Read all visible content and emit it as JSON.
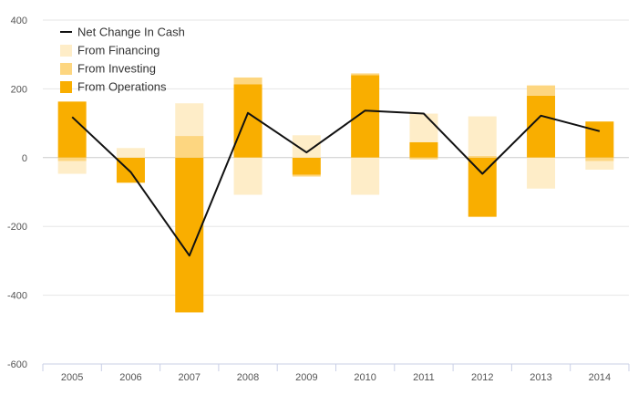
{
  "chart_data": {
    "type": "bar",
    "categories": [
      "2005",
      "2006",
      "2007",
      "2008",
      "2009",
      "2010",
      "2011",
      "2012",
      "2013",
      "2014"
    ],
    "ylim": [
      -600,
      400
    ],
    "yticks": [
      400,
      200,
      0,
      -200,
      -400,
      -600
    ],
    "grid": true,
    "legend_position": "top-left",
    "series": [
      {
        "name": "From Operations",
        "kind": "bar",
        "color": "#F9AE00",
        "values": [
          163,
          -73,
          -450,
          213,
          -50,
          240,
          45,
          -172,
          180,
          105
        ]
      },
      {
        "name": "From Investing",
        "kind": "bar",
        "color": "#FDD680",
        "values": [
          -10,
          0,
          63,
          20,
          -5,
          5,
          -5,
          5,
          30,
          -10
        ]
      },
      {
        "name": "From Financing",
        "kind": "bar",
        "color": "#FEEDC8",
        "values": [
          -37,
          28,
          95,
          -108,
          65,
          -108,
          83,
          115,
          -90,
          -25
        ]
      },
      {
        "name": "Net Change In Cash",
        "kind": "line",
        "color": "#111111",
        "values": [
          118,
          -42,
          -285,
          130,
          15,
          137,
          128,
          -47,
          122,
          77
        ]
      }
    ]
  }
}
